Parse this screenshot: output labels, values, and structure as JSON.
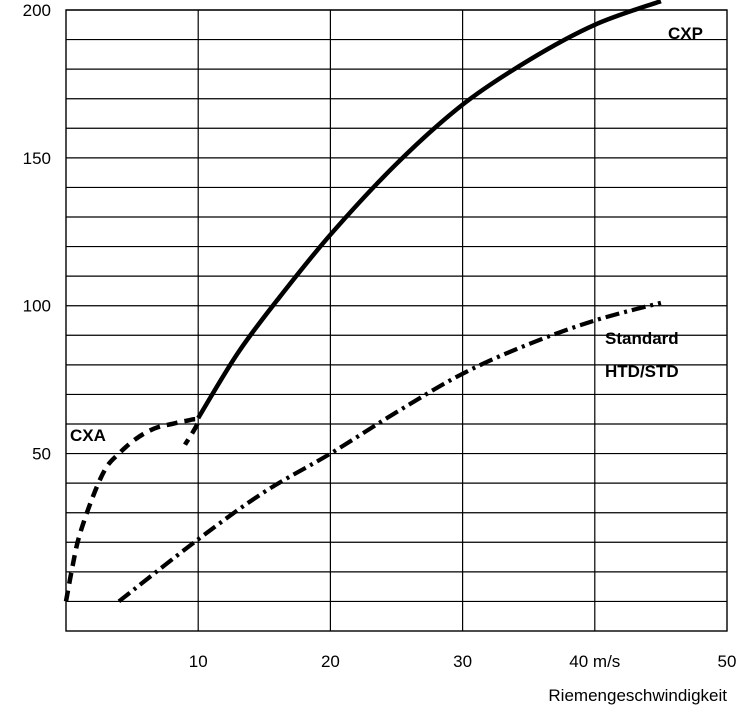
{
  "chart_data": {
    "type": "line",
    "xlabel": "Riemengeschwindigkeit",
    "ylabel": "",
    "xlim": [
      0,
      50
    ],
    "ylim": [
      -10,
      200
    ],
    "grid": true,
    "x_ticks": [
      {
        "value": 10,
        "label": "10"
      },
      {
        "value": 20,
        "label": "20"
      },
      {
        "value": 30,
        "label": "30"
      },
      {
        "value": 40,
        "label": "40 m/s"
      },
      {
        "value": 50,
        "label": "50"
      }
    ],
    "y_ticks": [
      {
        "value": 50,
        "label": "50"
      },
      {
        "value": 100,
        "label": "100"
      },
      {
        "value": 150,
        "label": "150"
      },
      {
        "value": 200,
        "label": "200"
      }
    ],
    "series": [
      {
        "label_lines": [
          "CXA"
        ],
        "style": "dashed",
        "x": [
          0,
          0.5,
          1,
          2,
          3,
          4,
          5,
          6,
          7,
          8,
          9,
          10,
          9
        ],
        "y": [
          0,
          12,
          22,
          35,
          45,
          50,
          54,
          57,
          59,
          60,
          61,
          61,
          53
        ]
      },
      {
        "label_lines": [
          "CXP"
        ],
        "style": "solid",
        "x": [
          10,
          13,
          16,
          20,
          25,
          30,
          35,
          40,
          45
        ],
        "y": [
          62,
          84,
          102,
          124,
          148,
          168,
          183,
          195,
          203
        ]
      },
      {
        "label_lines": [
          "Standard",
          "HTD/STD"
        ],
        "style": "dashdot",
        "x": [
          4,
          10,
          15,
          20,
          25,
          30,
          35,
          40,
          45
        ],
        "y": [
          0,
          21,
          37,
          50,
          64,
          77,
          87,
          95,
          101
        ]
      }
    ]
  }
}
